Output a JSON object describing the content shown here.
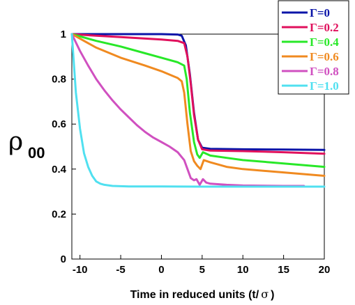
{
  "chart_data": {
    "type": "line",
    "title": "",
    "xlabel_prefix": "Time in reduced units (t/",
    "xlabel_symbol": "σ",
    "xlabel_suffix": ")",
    "ylabel_symbol": "ρ",
    "ylabel_subscript": "00",
    "xlim": [
      -11,
      20
    ],
    "ylim": [
      0,
      1
    ],
    "xticks": [
      -10,
      -5,
      0,
      5,
      10,
      15,
      20
    ],
    "yticks": [
      0,
      0.2,
      0.4,
      0.6,
      0.8,
      1
    ],
    "ytick_labels": [
      "0",
      "0.2",
      "0.4",
      "0.6",
      "0.8",
      "1"
    ],
    "legend_position": "top-right",
    "grid": false,
    "series": [
      {
        "name": "Γ=0",
        "color": "#0a14a8",
        "points": [
          [
            -11,
            1
          ],
          [
            -5,
            1
          ],
          [
            0,
            1
          ],
          [
            2,
            0.998
          ],
          [
            2.5,
            0.993
          ],
          [
            3,
            0.95
          ],
          [
            3.5,
            0.82
          ],
          [
            4,
            0.65
          ],
          [
            4.5,
            0.53
          ],
          [
            5,
            0.495
          ],
          [
            6,
            0.49
          ],
          [
            10,
            0.488
          ],
          [
            15,
            0.487
          ],
          [
            20,
            0.485
          ]
        ]
      },
      {
        "name": "Γ=0.2",
        "color": "#e0105c",
        "points": [
          [
            -11,
            1
          ],
          [
            -8,
            0.993
          ],
          [
            -5,
            0.987
          ],
          [
            0,
            0.976
          ],
          [
            2,
            0.97
          ],
          [
            2.8,
            0.96
          ],
          [
            3.2,
            0.9
          ],
          [
            3.6,
            0.78
          ],
          [
            4,
            0.64
          ],
          [
            4.5,
            0.53
          ],
          [
            5,
            0.488
          ],
          [
            6,
            0.482
          ],
          [
            10,
            0.48
          ],
          [
            15,
            0.475
          ],
          [
            20,
            0.468
          ]
        ]
      },
      {
        "name": "Γ=0.4",
        "color": "#28e828",
        "points": [
          [
            -11,
            1
          ],
          [
            -8,
            0.97
          ],
          [
            -5,
            0.945
          ],
          [
            -2,
            0.915
          ],
          [
            0,
            0.895
          ],
          [
            2,
            0.875
          ],
          [
            2.8,
            0.86
          ],
          [
            3.1,
            0.8
          ],
          [
            3.5,
            0.65
          ],
          [
            4,
            0.52
          ],
          [
            4.4,
            0.465
          ],
          [
            4.7,
            0.45
          ],
          [
            5.1,
            0.475
          ],
          [
            6,
            0.46
          ],
          [
            8,
            0.45
          ],
          [
            10,
            0.44
          ],
          [
            15,
            0.425
          ],
          [
            20,
            0.41
          ]
        ]
      },
      {
        "name": "Γ=0.6",
        "color": "#f08a20",
        "points": [
          [
            -11,
            1
          ],
          [
            -8,
            0.94
          ],
          [
            -5,
            0.895
          ],
          [
            -2,
            0.86
          ],
          [
            0,
            0.835
          ],
          [
            1,
            0.82
          ],
          [
            2,
            0.805
          ],
          [
            2.5,
            0.79
          ],
          [
            2.8,
            0.74
          ],
          [
            3.2,
            0.6
          ],
          [
            3.6,
            0.48
          ],
          [
            4,
            0.435
          ],
          [
            4.4,
            0.415
          ],
          [
            4.8,
            0.4
          ],
          [
            5.2,
            0.44
          ],
          [
            6,
            0.43
          ],
          [
            8,
            0.41
          ],
          [
            10,
            0.4
          ],
          [
            15,
            0.385
          ],
          [
            20,
            0.37
          ]
        ]
      },
      {
        "name": "Γ=0.8",
        "color": "#d050c0",
        "points": [
          [
            -11,
            1
          ],
          [
            -10,
            0.925
          ],
          [
            -9,
            0.86
          ],
          [
            -8,
            0.8
          ],
          [
            -7,
            0.75
          ],
          [
            -6,
            0.705
          ],
          [
            -5,
            0.665
          ],
          [
            -4,
            0.63
          ],
          [
            -3,
            0.595
          ],
          [
            -2,
            0.565
          ],
          [
            -1,
            0.54
          ],
          [
            0,
            0.52
          ],
          [
            1,
            0.5
          ],
          [
            2,
            0.475
          ],
          [
            2.8,
            0.44
          ],
          [
            3.2,
            0.4
          ],
          [
            3.6,
            0.36
          ],
          [
            4,
            0.35
          ],
          [
            4.3,
            0.355
          ],
          [
            4.7,
            0.33
          ],
          [
            5.1,
            0.355
          ],
          [
            5.5,
            0.34
          ],
          [
            6,
            0.335
          ],
          [
            8,
            0.33
          ],
          [
            10,
            0.327
          ],
          [
            15,
            0.325
          ],
          [
            17.5,
            0.325
          ]
        ]
      },
      {
        "name": "Γ=1.0",
        "color": "#50e0f0",
        "points": [
          [
            -11,
            1
          ],
          [
            -10.5,
            0.74
          ],
          [
            -10,
            0.58
          ],
          [
            -9.5,
            0.47
          ],
          [
            -9,
            0.41
          ],
          [
            -8.5,
            0.37
          ],
          [
            -8,
            0.345
          ],
          [
            -7.5,
            0.335
          ],
          [
            -7,
            0.33
          ],
          [
            -6,
            0.325
          ],
          [
            -4,
            0.323
          ],
          [
            0,
            0.323
          ],
          [
            5,
            0.322
          ],
          [
            10,
            0.322
          ],
          [
            15,
            0.322
          ],
          [
            20,
            0.322
          ]
        ]
      }
    ]
  }
}
